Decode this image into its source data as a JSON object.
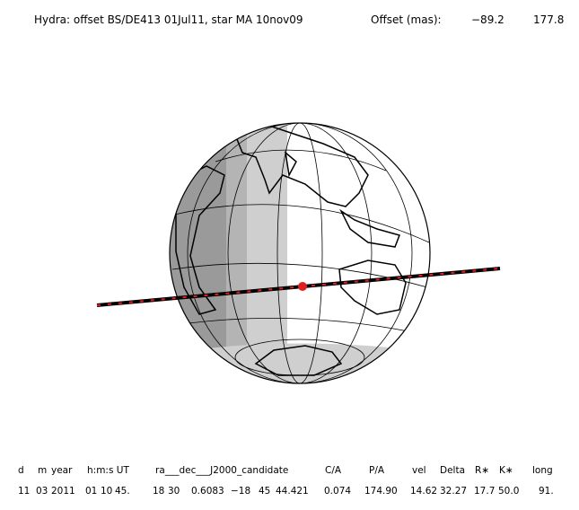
{
  "header": {
    "title": "Hydra: offset BS/DE413 01Jul11, star MA 10nov09",
    "offset_label": "Offset (mas):",
    "offset_values": [
      "−89.2",
      "177.8"
    ]
  },
  "table": {
    "columns": [
      "d",
      "m",
      "year",
      "h:m:s UT",
      "ra___dec___J2000_candidate",
      "C/A",
      "P/A",
      "vel",
      "Delta",
      "R∗",
      "K∗",
      "long"
    ],
    "row": [
      "11",
      "03",
      "2011",
      "01",
      "10",
      "45.",
      "18",
      "30",
      "0.6083",
      "−18",
      "45",
      "44.421",
      "0.074",
      "174.90",
      "14.62",
      "32.27",
      "17.7",
      "50.0",
      "91."
    ]
  }
}
